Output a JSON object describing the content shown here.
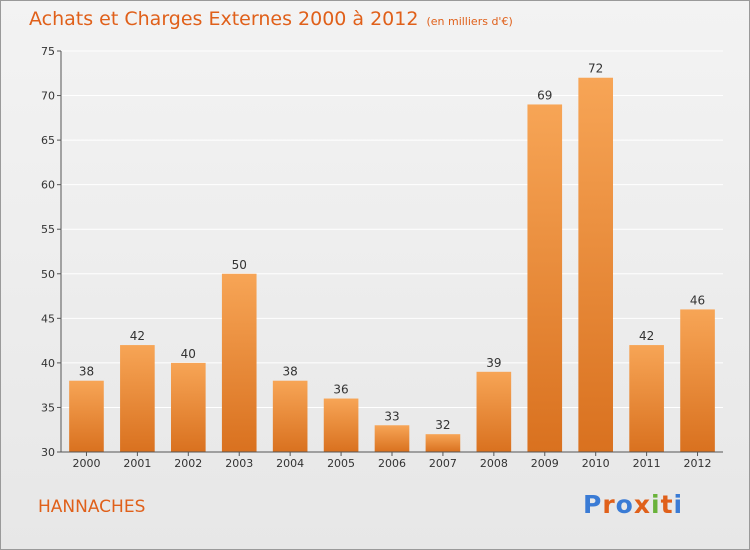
{
  "header": {
    "title": "Achats et Charges Externes 2000 à 2012",
    "subtitle": "(en milliers d'€)"
  },
  "commune": "HANNACHES",
  "logo": {
    "text": "Proxiti",
    "letter_colors": [
      "#3a7bd5",
      "#e0601a",
      "#3a7bd5",
      "#e0601a",
      "#69b23a",
      "#e0601a",
      "#3a7bd5"
    ]
  },
  "colors": {
    "bar_top": "#f7a556",
    "bar_bottom": "#d9711f",
    "axis": "#555555",
    "grid": "#ffffff",
    "title": "#e0601a"
  },
  "chart_data": {
    "type": "bar",
    "title": "Achats et Charges Externes 2000 à 2012",
    "subtitle": "(en milliers d'€)",
    "categories": [
      "2000",
      "2001",
      "2002",
      "2003",
      "2004",
      "2005",
      "2006",
      "2007",
      "2008",
      "2009",
      "2010",
      "2011",
      "2012"
    ],
    "values": [
      38,
      42,
      40,
      50,
      38,
      36,
      33,
      32,
      39,
      69,
      72,
      42,
      46
    ],
    "data_labels": [
      "38",
      "42",
      "40",
      "50",
      "38",
      "36",
      "33",
      "32",
      "39",
      "69",
      "72",
      "42",
      "46"
    ],
    "yticks": [
      30,
      35,
      40,
      45,
      50,
      55,
      60,
      65,
      70,
      75
    ],
    "ylim": [
      30,
      75
    ],
    "xlabel": "",
    "ylabel": "",
    "grid": true
  }
}
